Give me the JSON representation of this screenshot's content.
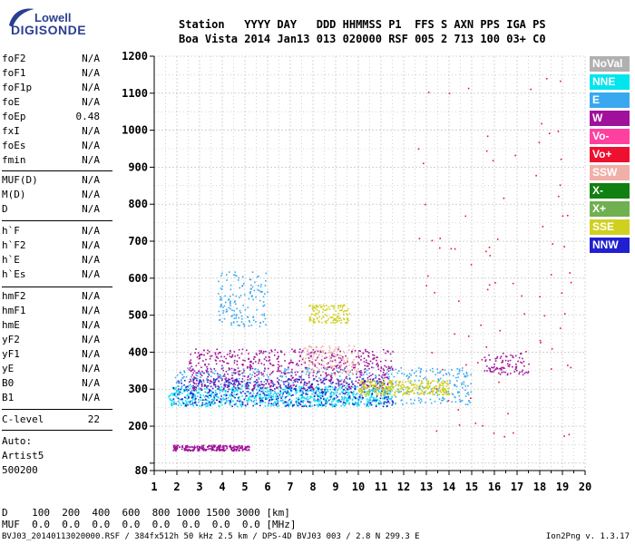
{
  "logo": {
    "line1": "Lowell",
    "line2": "DIGISONDE"
  },
  "header": {
    "line1": "Station   YYYY DAY   DDD HHMMSS P1  FFS S AXN PPS IGA PS",
    "line2": "Boa Vista 2014 Jan13 013 020000 RSF 005 2 713 100 03+ C0"
  },
  "params": {
    "group1": [
      {
        "name": "foF2",
        "value": "N/A"
      },
      {
        "name": "foF1",
        "value": "N/A"
      },
      {
        "name": "foF1p",
        "value": "N/A"
      },
      {
        "name": "foE",
        "value": "N/A"
      },
      {
        "name": "foEp",
        "value": "0.48"
      },
      {
        "name": "fxI",
        "value": "N/A"
      },
      {
        "name": "foEs",
        "value": "N/A"
      },
      {
        "name": "fmin",
        "value": "N/A"
      }
    ],
    "group2": [
      {
        "name": "MUF(D)",
        "value": "N/A"
      },
      {
        "name": "M(D)",
        "value": "N/A"
      },
      {
        "name": "D",
        "value": "N/A"
      }
    ],
    "group3": [
      {
        "name": "h`F",
        "value": "N/A"
      },
      {
        "name": "h`F2",
        "value": "N/A"
      },
      {
        "name": "h`E",
        "value": "N/A"
      },
      {
        "name": "h`Es",
        "value": "N/A"
      }
    ],
    "group4": [
      {
        "name": "hmF2",
        "value": "N/A"
      },
      {
        "name": "hmF1",
        "value": "N/A"
      },
      {
        "name": "hmE",
        "value": "N/A"
      },
      {
        "name": "yF2",
        "value": "N/A"
      },
      {
        "name": "yF1",
        "value": "N/A"
      },
      {
        "name": "yE",
        "value": "N/A"
      },
      {
        "name": "B0",
        "value": "N/A"
      },
      {
        "name": "B1",
        "value": "N/A"
      }
    ],
    "clevel": {
      "name": "C-level",
      "value": "22"
    }
  },
  "auto": {
    "line1": "Auto:",
    "line2": "Artist5",
    "line3": "500200"
  },
  "bottom": {
    "d_row": "D    100  200  400  600  800 1000 1500 3000 [km]",
    "muf_row": "MUF  0.0  0.0  0.0  0.0  0.0  0.0  0.0  0.0 [MHz]"
  },
  "footer": {
    "left": "BVJ03_20140113020000.RSF / 384fx512h 50 kHz 2.5 km / DPS-4D BVJ03 003 / 2.8 N 299.3 E",
    "right": "Ion2Png v. 1.3.17"
  },
  "legend": [
    {
      "label": "NoVal",
      "color": "#b0b0b0"
    },
    {
      "label": "NNE",
      "color": "#00e5ee"
    },
    {
      "label": "E",
      "color": "#3aa8f0"
    },
    {
      "label": "W",
      "color": "#a0109a"
    },
    {
      "label": "Vo-",
      "color": "#ff40a0"
    },
    {
      "label": "Vo+",
      "color": "#ee1030"
    },
    {
      "label": "SSW",
      "color": "#f0b0a8"
    },
    {
      "label": "X-",
      "color": "#108010"
    },
    {
      "label": "X+",
      "color": "#70b050"
    },
    {
      "label": "SSE",
      "color": "#d0d020"
    },
    {
      "label": "NNW",
      "color": "#2020d0"
    }
  ],
  "chart_data": {
    "type": "scatter",
    "title": "",
    "xlabel": "",
    "ylabel": "",
    "xlim": [
      1,
      20
    ],
    "ylim": [
      80,
      1200
    ],
    "x_ticks": [
      1,
      2,
      3,
      4,
      5,
      6,
      7,
      8,
      9,
      10,
      11,
      12,
      13,
      14,
      15,
      16,
      17,
      18,
      19,
      20
    ],
    "y_ticks": [
      80,
      100,
      200,
      300,
      400,
      500,
      600,
      700,
      800,
      900,
      1000,
      1100,
      1200
    ],
    "y_tick_labels": [
      "80",
      "",
      "200",
      "300",
      "400",
      "500",
      "600",
      "700",
      "800",
      "900",
      "1000",
      "1100",
      "1200"
    ],
    "grid": true,
    "legend_position": "right",
    "clusters": [
      {
        "series": "NNE",
        "x": [
          1.6,
          11.5
        ],
        "y": [
          255,
          310
        ],
        "n": 700
      },
      {
        "series": "E",
        "x": [
          1.8,
          15.0
        ],
        "y": [
          260,
          360
        ],
        "n": 650
      },
      {
        "series": "NNW",
        "x": [
          1.8,
          11.5
        ],
        "y": [
          255,
          330
        ],
        "n": 450
      },
      {
        "series": "W",
        "x": [
          2.5,
          11.5
        ],
        "y": [
          300,
          410
        ],
        "n": 650
      },
      {
        "series": "W",
        "x": [
          1.8,
          5.2
        ],
        "y": [
          135,
          150
        ],
        "n": 220
      },
      {
        "series": "SSE",
        "x": [
          10.0,
          14.0
        ],
        "y": [
          285,
          325
        ],
        "n": 300
      },
      {
        "series": "SSE",
        "x": [
          7.8,
          9.6
        ],
        "y": [
          480,
          530
        ],
        "n": 130
      },
      {
        "series": "SSW",
        "x": [
          7.5,
          10.0
        ],
        "y": [
          340,
          420
        ],
        "n": 140
      },
      {
        "series": "E",
        "x": [
          3.8,
          6.0
        ],
        "y": [
          470,
          620
        ],
        "n": 150
      },
      {
        "series": "W",
        "x": [
          15.5,
          17.5
        ],
        "y": [
          340,
          400
        ],
        "n": 90
      },
      {
        "series": "Vo+",
        "x": [
          12.5,
          19.5
        ],
        "y": [
          150,
          1150
        ],
        "n": 90
      }
    ]
  }
}
